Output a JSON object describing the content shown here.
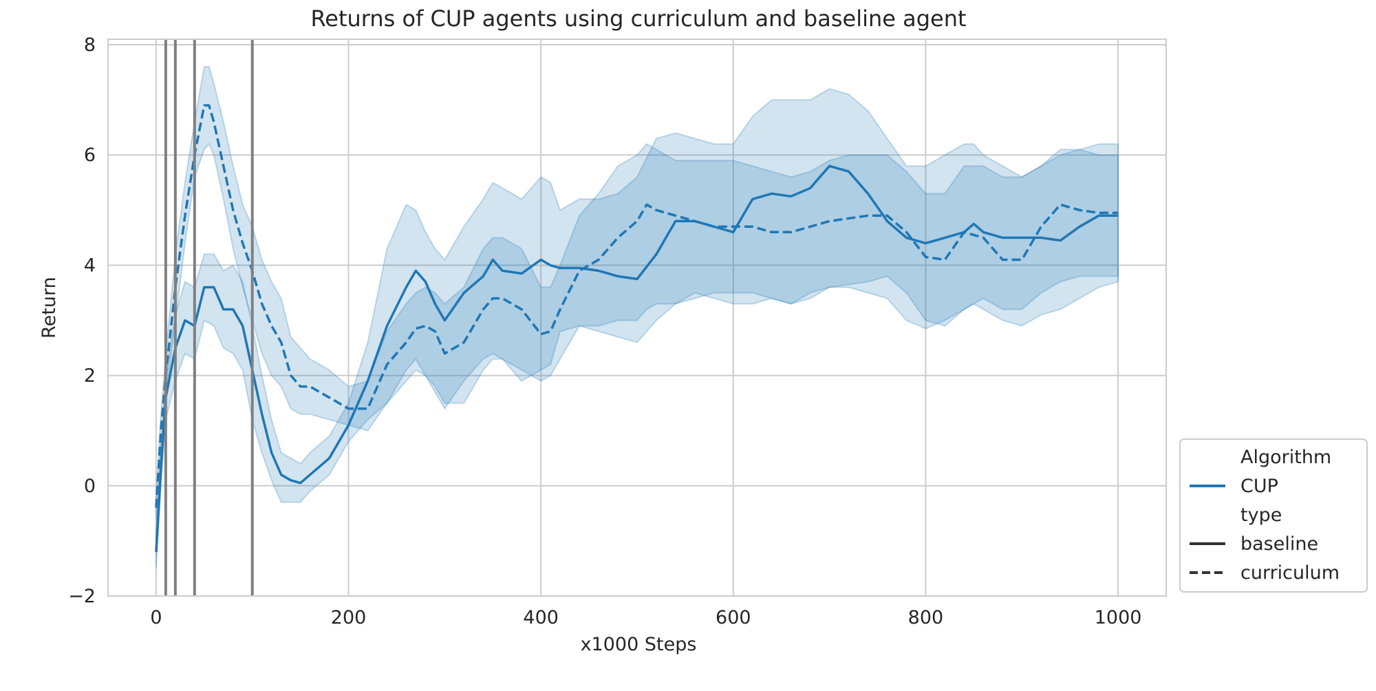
{
  "chart_data": {
    "type": "line",
    "title": "Returns of CUP agents using curriculum and baseline agent",
    "xlabel": "x1000 Steps",
    "ylabel": "Return",
    "xlim": [
      -50,
      1050
    ],
    "ylim": [
      -2,
      8.1
    ],
    "xticks": [
      0,
      200,
      400,
      600,
      800,
      1000
    ],
    "xtick_labels": [
      "0",
      "200",
      "400",
      "600",
      "800",
      "1000"
    ],
    "yticks": [
      -2,
      0,
      2,
      4,
      6,
      8
    ],
    "ytick_labels": [
      "−2",
      "0",
      "2",
      "4",
      "6",
      "8"
    ],
    "grid": true,
    "colors": {
      "series": "#1f77b4",
      "band": "#1f77b4",
      "vline": "#808080",
      "grid": "#cccccc",
      "text": "#262626"
    },
    "vertical_lines": [
      10,
      20,
      40,
      100
    ],
    "legend": {
      "placement": "outside-lower-right",
      "entries": [
        {
          "label": "Algorithm",
          "kind": "header"
        },
        {
          "label": "CUP",
          "kind": "line",
          "style": "solid",
          "color": "#1f77b4"
        },
        {
          "label": "type",
          "kind": "header"
        },
        {
          "label": "baseline",
          "kind": "line",
          "style": "solid",
          "color": "#333333"
        },
        {
          "label": "curriculum",
          "kind": "line",
          "style": "dashed",
          "color": "#333333"
        }
      ]
    },
    "series": [
      {
        "name": "baseline",
        "style": "solid",
        "x": [
          0,
          5,
          10,
          20,
          30,
          40,
          50,
          60,
          70,
          80,
          90,
          100,
          110,
          120,
          130,
          140,
          150,
          160,
          180,
          200,
          220,
          240,
          260,
          270,
          280,
          290,
          300,
          320,
          340,
          350,
          360,
          380,
          400,
          410,
          420,
          440,
          460,
          480,
          500,
          520,
          540,
          560,
          580,
          600,
          620,
          640,
          660,
          680,
          700,
          720,
          740,
          760,
          780,
          800,
          820,
          840,
          850,
          860,
          880,
          900,
          920,
          940,
          960,
          980,
          1000
        ],
        "y": [
          -1.2,
          0.3,
          1.6,
          2.5,
          3.0,
          2.9,
          3.6,
          3.6,
          3.2,
          3.2,
          2.9,
          2.1,
          1.3,
          0.6,
          0.2,
          0.1,
          0.05,
          0.2,
          0.5,
          1.1,
          1.9,
          2.9,
          3.6,
          3.9,
          3.7,
          3.3,
          3.0,
          3.5,
          3.8,
          4.1,
          3.9,
          3.85,
          4.1,
          4.0,
          3.95,
          3.95,
          3.9,
          3.8,
          3.75,
          4.2,
          4.8,
          4.8,
          4.7,
          4.6,
          5.2,
          5.3,
          5.25,
          5.4,
          5.8,
          5.7,
          5.3,
          4.8,
          4.5,
          4.4,
          4.5,
          4.6,
          4.75,
          4.6,
          4.5,
          4.5,
          4.5,
          4.45,
          4.7,
          4.9,
          4.9
        ],
        "lower": [
          -1.5,
          0.0,
          1.2,
          1.9,
          2.4,
          2.3,
          3.0,
          2.9,
          2.5,
          2.4,
          2.1,
          1.2,
          0.6,
          0.1,
          -0.3,
          -0.3,
          -0.3,
          -0.1,
          0.2,
          0.8,
          1.2,
          1.5,
          2.1,
          2.3,
          2.0,
          1.7,
          1.4,
          1.9,
          2.3,
          2.4,
          2.3,
          1.9,
          2.1,
          2.2,
          2.8,
          2.9,
          2.8,
          2.7,
          2.6,
          3.0,
          3.3,
          3.5,
          3.4,
          3.3,
          3.3,
          3.4,
          3.3,
          3.5,
          3.6,
          3.6,
          3.5,
          3.4,
          3.0,
          2.85,
          3.0,
          3.2,
          3.3,
          3.2,
          3.0,
          2.9,
          3.1,
          3.2,
          3.4,
          3.6,
          3.7
        ],
        "upper": [
          -0.8,
          0.7,
          2.0,
          3.1,
          3.7,
          3.6,
          4.2,
          4.2,
          3.9,
          4.0,
          3.7,
          2.9,
          2.0,
          1.2,
          0.6,
          0.5,
          0.4,
          0.6,
          0.9,
          1.5,
          2.6,
          4.3,
          5.1,
          5.0,
          4.6,
          4.3,
          4.1,
          4.7,
          5.2,
          5.5,
          5.4,
          5.2,
          5.6,
          5.5,
          5.0,
          5.2,
          5.2,
          5.3,
          5.6,
          6.3,
          6.4,
          6.3,
          6.2,
          6.2,
          6.7,
          7.0,
          7.0,
          7.0,
          7.2,
          7.1,
          6.8,
          6.3,
          5.8,
          5.8,
          6.0,
          6.2,
          6.2,
          6.0,
          5.8,
          5.6,
          5.8,
          6.0,
          6.1,
          6.2,
          6.2
        ]
      },
      {
        "name": "curriculum",
        "style": "dashed",
        "x": [
          0,
          5,
          10,
          20,
          30,
          40,
          50,
          55,
          60,
          70,
          80,
          90,
          100,
          110,
          120,
          130,
          140,
          150,
          160,
          180,
          200,
          220,
          240,
          260,
          270,
          280,
          290,
          300,
          320,
          340,
          350,
          360,
          380,
          400,
          410,
          420,
          440,
          460,
          480,
          500,
          510,
          520,
          540,
          560,
          580,
          600,
          620,
          640,
          660,
          680,
          700,
          720,
          740,
          760,
          780,
          800,
          820,
          840,
          860,
          880,
          900,
          920,
          940,
          960,
          980,
          1000
        ],
        "y": [
          -0.4,
          1.0,
          2.0,
          3.6,
          4.9,
          6.0,
          6.9,
          6.9,
          6.6,
          5.8,
          5.0,
          4.4,
          3.9,
          3.3,
          2.9,
          2.6,
          2.0,
          1.8,
          1.8,
          1.6,
          1.4,
          1.4,
          2.2,
          2.6,
          2.85,
          2.9,
          2.8,
          2.4,
          2.6,
          3.2,
          3.4,
          3.4,
          3.2,
          2.75,
          2.8,
          3.2,
          3.9,
          4.1,
          4.5,
          4.8,
          5.1,
          5.0,
          4.9,
          4.8,
          4.7,
          4.7,
          4.7,
          4.6,
          4.6,
          4.7,
          4.8,
          4.85,
          4.9,
          4.9,
          4.6,
          4.15,
          4.1,
          4.6,
          4.5,
          4.1,
          4.1,
          4.7,
          5.1,
          5.0,
          4.95,
          4.95
        ],
        "lower": [
          -0.6,
          0.7,
          1.6,
          3.0,
          4.4,
          5.6,
          6.1,
          6.2,
          6.0,
          5.2,
          4.3,
          3.6,
          3.0,
          2.4,
          2.0,
          1.8,
          1.4,
          1.3,
          1.3,
          1.2,
          1.1,
          1.0,
          1.5,
          1.9,
          2.1,
          2.0,
          1.8,
          1.5,
          1.5,
          2.1,
          2.3,
          2.3,
          2.1,
          1.9,
          2.0,
          2.3,
          2.9,
          2.9,
          3.0,
          3.0,
          3.2,
          3.3,
          3.3,
          3.4,
          3.5,
          3.5,
          3.5,
          3.4,
          3.3,
          3.4,
          3.6,
          3.65,
          3.7,
          3.8,
          3.5,
          3.0,
          2.9,
          3.2,
          3.4,
          3.2,
          3.2,
          3.5,
          3.7,
          3.8,
          3.8,
          3.8
        ],
        "upper": [
          -0.2,
          1.3,
          2.4,
          4.2,
          5.5,
          6.6,
          7.6,
          7.6,
          7.3,
          6.6,
          5.8,
          5.1,
          4.7,
          4.1,
          3.7,
          3.4,
          2.7,
          2.5,
          2.3,
          2.1,
          1.8,
          1.9,
          2.8,
          3.3,
          3.5,
          3.6,
          3.5,
          3.3,
          3.6,
          4.3,
          4.5,
          4.5,
          4.3,
          3.6,
          3.6,
          4.0,
          4.9,
          5.3,
          5.8,
          6.0,
          6.2,
          6.1,
          5.9,
          5.9,
          5.9,
          5.9,
          5.8,
          5.7,
          5.6,
          5.7,
          5.9,
          6.0,
          6.0,
          6.0,
          5.7,
          5.3,
          5.3,
          5.8,
          5.8,
          5.6,
          5.6,
          5.8,
          6.1,
          6.1,
          6.0,
          6.0
        ]
      }
    ]
  }
}
